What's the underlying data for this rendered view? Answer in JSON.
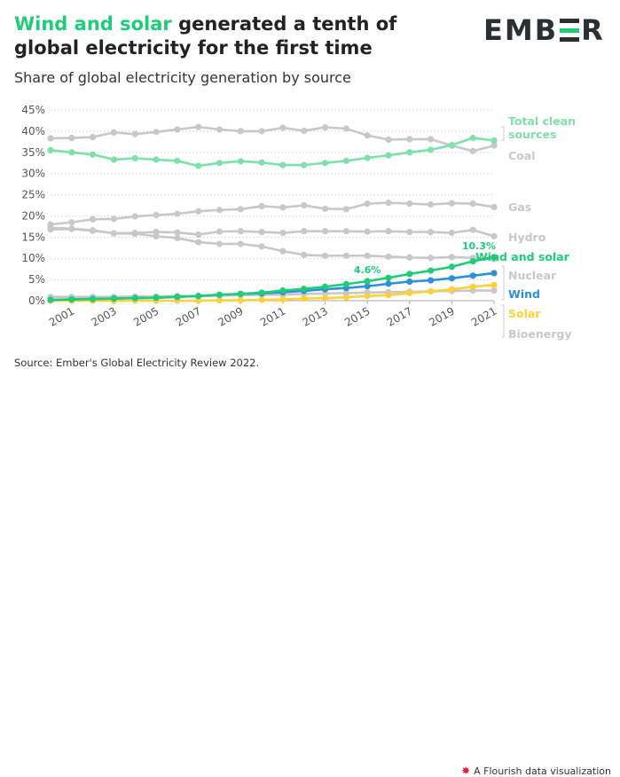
{
  "header": {
    "title_highlight": "Wind and solar",
    "title_rest": " generated a tenth of global electricity for the first time",
    "subtitle": "Share of global electricity generation by source",
    "logo_text": "EMB",
    "logo_tail": "R"
  },
  "footer": {
    "source": "Source: Ember's Global Electricity Review 2022.",
    "credit": "A Flourish data visualization",
    "credit_icon": "flourish-star-icon"
  },
  "colors": {
    "accent": "#1fcc78",
    "clean": "#7fe0a8",
    "grey": "#c8c8c8",
    "wind": "#2f8fd8",
    "solar": "#fcd13a",
    "wind_solar": "#1fcc78",
    "text": "#222222"
  },
  "chart_data": {
    "type": "line",
    "title": "Wind and solar generated a tenth of global electricity for the first time",
    "subtitle": "Share of global electricity generation by source",
    "xlabel": "",
    "ylabel": "",
    "ylim": [
      0,
      45
    ],
    "xlim": [
      2000,
      2021
    ],
    "y_ticks": [
      0,
      5,
      10,
      15,
      20,
      25,
      30,
      35,
      40,
      45
    ],
    "y_tick_labels": [
      "0%",
      "5%",
      "10%",
      "15%",
      "20%",
      "25%",
      "30%",
      "35%",
      "40%",
      "45%"
    ],
    "x_ticks": [
      2001,
      2003,
      2005,
      2007,
      2009,
      2011,
      2013,
      2015,
      2017,
      2019,
      2021
    ],
    "x_tick_labels": [
      "2001",
      "2003",
      "2005",
      "2007",
      "2009",
      "2011",
      "2013",
      "2015",
      "2017",
      "2019",
      "2021"
    ],
    "grid": true,
    "x": [
      2000,
      2001,
      2002,
      2003,
      2004,
      2005,
      2006,
      2007,
      2008,
      2009,
      2010,
      2011,
      2012,
      2013,
      2014,
      2015,
      2016,
      2017,
      2018,
      2019,
      2020,
      2021
    ],
    "series": [
      {
        "name": "Total clean sources",
        "label": "Total clean sources",
        "color_key": "clean",
        "values": [
          35.5,
          35.0,
          34.5,
          33.3,
          33.6,
          33.3,
          33.0,
          31.8,
          32.5,
          32.9,
          32.6,
          32.0,
          32.0,
          32.5,
          33.0,
          33.7,
          34.3,
          35.0,
          35.6,
          36.7,
          38.4,
          37.8
        ]
      },
      {
        "name": "Coal",
        "label": "Coal",
        "color_key": "grey",
        "values": [
          38.3,
          38.4,
          38.6,
          39.7,
          39.3,
          39.8,
          40.4,
          41.0,
          40.4,
          40.0,
          40.0,
          40.8,
          40.1,
          40.9,
          40.6,
          39.0,
          38.0,
          38.1,
          38.1,
          36.6,
          35.3,
          36.6
        ]
      },
      {
        "name": "Gas",
        "label": "Gas",
        "color_key": "grey",
        "values": [
          18.0,
          18.5,
          19.2,
          19.3,
          19.9,
          20.2,
          20.5,
          21.1,
          21.4,
          21.6,
          22.3,
          22.0,
          22.5,
          21.7,
          21.6,
          22.9,
          23.1,
          22.9,
          22.7,
          23.0,
          22.9,
          22.1
        ]
      },
      {
        "name": "Hydro",
        "label": "Hydro",
        "color_key": "grey",
        "values": [
          17.2,
          17.0,
          16.6,
          15.9,
          16.0,
          16.2,
          16.1,
          15.6,
          16.3,
          16.4,
          16.2,
          16.0,
          16.4,
          16.4,
          16.4,
          16.3,
          16.4,
          16.2,
          16.2,
          16.0,
          16.7,
          15.2
        ]
      },
      {
        "name": "Nuclear",
        "label": "Nuclear",
        "color_key": "grey",
        "values": [
          16.8,
          16.9,
          16.5,
          15.9,
          15.8,
          15.2,
          14.8,
          13.8,
          13.4,
          13.4,
          12.8,
          11.7,
          10.8,
          10.6,
          10.6,
          10.6,
          10.4,
          10.2,
          10.1,
          10.3,
          10.1,
          9.8
        ]
      },
      {
        "name": "Wind and solar",
        "label": "Wind and solar",
        "color_key": "wind_solar",
        "values": [
          0.2,
          0.3,
          0.4,
          0.5,
          0.6,
          0.7,
          0.9,
          1.1,
          1.4,
          1.6,
          1.9,
          2.4,
          2.8,
          3.3,
          3.9,
          4.6,
          5.4,
          6.3,
          7.1,
          8.0,
          9.3,
          10.3
        ]
      },
      {
        "name": "Wind",
        "label": "Wind",
        "color_key": "wind",
        "values": [
          0.2,
          0.3,
          0.4,
          0.5,
          0.6,
          0.7,
          0.9,
          1.1,
          1.4,
          1.6,
          1.7,
          2.0,
          2.3,
          2.7,
          3.0,
          3.4,
          4.0,
          4.5,
          4.8,
          5.3,
          5.9,
          6.5
        ]
      },
      {
        "name": "Solar",
        "label": "Solar",
        "color_key": "solar",
        "values": [
          0.0,
          0.0,
          0.0,
          0.0,
          0.0,
          0.0,
          0.0,
          0.0,
          0.1,
          0.1,
          0.2,
          0.3,
          0.5,
          0.6,
          0.8,
          1.1,
          1.3,
          1.8,
          2.2,
          2.7,
          3.3,
          3.7
        ]
      },
      {
        "name": "Bioenergy",
        "label": "Bioenergy",
        "color_key": "grey",
        "values": [
          0.9,
          0.9,
          0.9,
          0.9,
          1.0,
          1.0,
          1.1,
          1.1,
          1.2,
          1.3,
          1.4,
          1.4,
          1.6,
          1.7,
          1.8,
          1.9,
          2.0,
          2.1,
          2.2,
          2.3,
          2.4,
          2.4
        ]
      }
    ],
    "annotations": [
      {
        "series": "Wind and solar",
        "year": 2015,
        "text": "4.6%"
      },
      {
        "series": "Wind and solar",
        "year": 2021,
        "text": "10.3%"
      }
    ]
  }
}
